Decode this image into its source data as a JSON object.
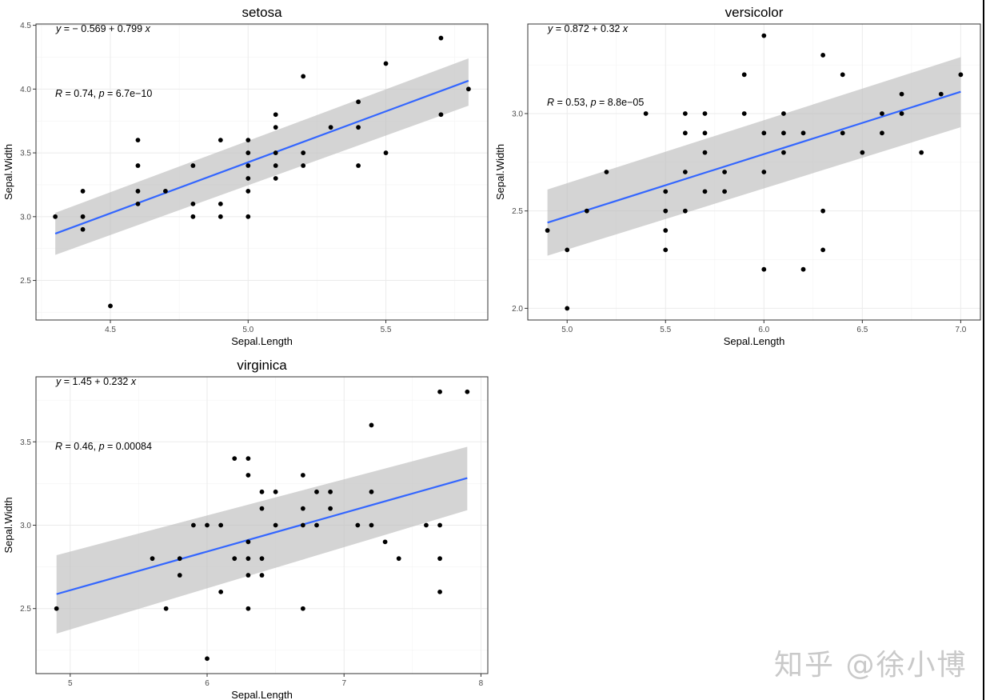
{
  "watermark": "知乎 @徐小博",
  "colors": {
    "fit_line": "#3366ff",
    "ribbon": "#bdbdbd",
    "point": "#000000",
    "grid": "#ebebeb",
    "border": "#333333"
  },
  "chart_data": [
    {
      "type": "scatter",
      "title": "setosa",
      "xlabel": "Sepal.Length",
      "ylabel": "Sepal.Width",
      "xlim": [
        4.23,
        5.87
      ],
      "ylim": [
        2.19,
        4.51
      ],
      "xticks": [
        4.5,
        5.0,
        5.5
      ],
      "xtick_labels": [
        "4.5",
        "5.0",
        "5.5"
      ],
      "yticks": [
        2.5,
        3.0,
        3.5,
        4.0,
        4.5
      ],
      "ytick_labels": [
        "2.5",
        "3.0",
        "3.5",
        "4.0",
        "4.5"
      ],
      "grid": true,
      "equation": "y = − 0.569 + 0.799 x",
      "stats": "R = 0.74, p = 6.7e−10",
      "fit": {
        "intercept": -0.569,
        "slope": 0.799,
        "x_range": [
          4.3,
          5.8
        ],
        "ci_lower": [
          2.7,
          3.87
        ],
        "ci_upper": [
          3.03,
          4.24
        ]
      },
      "points": [
        [
          4.3,
          3.0
        ],
        [
          4.4,
          3.2
        ],
        [
          4.4,
          3.0
        ],
        [
          4.4,
          2.9
        ],
        [
          4.5,
          2.3
        ],
        [
          4.6,
          3.6
        ],
        [
          4.6,
          3.4
        ],
        [
          4.6,
          3.2
        ],
        [
          4.6,
          3.1
        ],
        [
          4.7,
          3.2
        ],
        [
          4.8,
          3.4
        ],
        [
          4.8,
          3.1
        ],
        [
          4.8,
          3.0
        ],
        [
          4.9,
          3.6
        ],
        [
          4.9,
          3.1
        ],
        [
          4.9,
          3.0
        ],
        [
          5.0,
          3.6
        ],
        [
          5.0,
          3.5
        ],
        [
          5.0,
          3.4
        ],
        [
          5.0,
          3.3
        ],
        [
          5.0,
          3.2
        ],
        [
          5.0,
          3.0
        ],
        [
          5.1,
          3.8
        ],
        [
          5.1,
          3.7
        ],
        [
          5.1,
          3.5
        ],
        [
          5.1,
          3.4
        ],
        [
          5.1,
          3.3
        ],
        [
          5.2,
          4.1
        ],
        [
          5.2,
          3.5
        ],
        [
          5.2,
          3.4
        ],
        [
          5.3,
          3.7
        ],
        [
          5.4,
          3.9
        ],
        [
          5.4,
          3.7
        ],
        [
          5.4,
          3.4
        ],
        [
          5.5,
          4.2
        ],
        [
          5.5,
          3.5
        ],
        [
          5.7,
          4.4
        ],
        [
          5.7,
          3.8
        ],
        [
          5.8,
          4.0
        ]
      ]
    },
    {
      "type": "scatter",
      "title": "versicolor",
      "xlabel": "Sepal.Length",
      "ylabel": "Sepal.Width",
      "xlim": [
        4.8,
        7.1
      ],
      "ylim": [
        1.94,
        3.46
      ],
      "xticks": [
        5.0,
        5.5,
        6.0,
        6.5,
        7.0
      ],
      "xtick_labels": [
        "5.0",
        "5.5",
        "6.0",
        "6.5",
        "7.0"
      ],
      "yticks": [
        2.0,
        2.5,
        3.0
      ],
      "ytick_labels": [
        "2.0",
        "2.5",
        "3.0"
      ],
      "grid": true,
      "equation": "y = 0.872 + 0.32 x",
      "stats": "R = 0.53, p = 8.8e−05",
      "fit": {
        "intercept": 0.872,
        "slope": 0.32,
        "x_range": [
          4.9,
          7.0
        ],
        "ci_lower": [
          2.27,
          2.93
        ],
        "ci_upper": [
          2.61,
          3.29
        ]
      },
      "points": [
        [
          4.9,
          2.4
        ],
        [
          5.0,
          2.3
        ],
        [
          5.0,
          2.0
        ],
        [
          5.1,
          2.5
        ],
        [
          5.2,
          2.7
        ],
        [
          5.4,
          3.0
        ],
        [
          5.5,
          2.6
        ],
        [
          5.5,
          2.5
        ],
        [
          5.5,
          2.4
        ],
        [
          5.5,
          2.3
        ],
        [
          5.6,
          3.0
        ],
        [
          5.6,
          2.9
        ],
        [
          5.6,
          2.7
        ],
        [
          5.6,
          2.5
        ],
        [
          5.7,
          3.0
        ],
        [
          5.7,
          2.9
        ],
        [
          5.7,
          2.8
        ],
        [
          5.7,
          2.6
        ],
        [
          5.8,
          2.7
        ],
        [
          5.8,
          2.6
        ],
        [
          5.9,
          3.2
        ],
        [
          5.9,
          3.0
        ],
        [
          6.0,
          3.4
        ],
        [
          6.0,
          2.9
        ],
        [
          6.0,
          2.7
        ],
        [
          6.0,
          2.2
        ],
        [
          6.1,
          3.0
        ],
        [
          6.1,
          2.9
        ],
        [
          6.1,
          2.8
        ],
        [
          6.2,
          2.9
        ],
        [
          6.2,
          2.2
        ],
        [
          6.3,
          3.3
        ],
        [
          6.3,
          2.5
        ],
        [
          6.3,
          2.3
        ],
        [
          6.4,
          3.2
        ],
        [
          6.4,
          2.9
        ],
        [
          6.5,
          2.8
        ],
        [
          6.6,
          3.0
        ],
        [
          6.6,
          2.9
        ],
        [
          6.7,
          3.1
        ],
        [
          6.7,
          3.0
        ],
        [
          6.8,
          2.8
        ],
        [
          6.9,
          3.1
        ],
        [
          7.0,
          3.2
        ]
      ]
    },
    {
      "type": "scatter",
      "title": "virginica",
      "xlabel": "Sepal.Length",
      "ylabel": "Sepal.Width",
      "xlim": [
        4.75,
        8.05
      ],
      "ylim": [
        2.11,
        3.89
      ],
      "xticks": [
        5,
        6,
        7,
        8
      ],
      "xtick_labels": [
        "5",
        "6",
        "7",
        "8"
      ],
      "yticks": [
        2.5,
        3.0,
        3.5
      ],
      "ytick_labels": [
        "2.5",
        "3.0",
        "3.5"
      ],
      "grid": true,
      "equation": "y = 1.45 + 0.232 x",
      "stats": "R = 0.46, p = 0.00084",
      "fit": {
        "intercept": 1.45,
        "slope": 0.232,
        "x_range": [
          4.9,
          7.9
        ],
        "ci_lower": [
          2.35,
          3.09
        ],
        "ci_upper": [
          2.82,
          3.47
        ]
      },
      "points": [
        [
          4.9,
          2.5
        ],
        [
          5.6,
          2.8
        ],
        [
          5.7,
          2.5
        ],
        [
          5.8,
          2.8
        ],
        [
          5.8,
          2.7
        ],
        [
          5.9,
          3.0
        ],
        [
          6.0,
          3.0
        ],
        [
          6.0,
          2.2
        ],
        [
          6.1,
          3.0
        ],
        [
          6.1,
          2.6
        ],
        [
          6.2,
          3.4
        ],
        [
          6.2,
          2.8
        ],
        [
          6.3,
          3.4
        ],
        [
          6.3,
          3.3
        ],
        [
          6.3,
          2.9
        ],
        [
          6.3,
          2.8
        ],
        [
          6.3,
          2.7
        ],
        [
          6.3,
          2.5
        ],
        [
          6.4,
          3.2
        ],
        [
          6.4,
          3.1
        ],
        [
          6.4,
          2.8
        ],
        [
          6.4,
          2.7
        ],
        [
          6.5,
          3.2
        ],
        [
          6.5,
          3.0
        ],
        [
          6.7,
          3.3
        ],
        [
          6.7,
          3.1
        ],
        [
          6.7,
          3.0
        ],
        [
          6.7,
          2.5
        ],
        [
          6.8,
          3.2
        ],
        [
          6.8,
          3.0
        ],
        [
          6.9,
          3.2
        ],
        [
          6.9,
          3.1
        ],
        [
          7.1,
          3.0
        ],
        [
          7.2,
          3.6
        ],
        [
          7.2,
          3.2
        ],
        [
          7.2,
          3.0
        ],
        [
          7.3,
          2.9
        ],
        [
          7.4,
          2.8
        ],
        [
          7.6,
          3.0
        ],
        [
          7.7,
          3.8
        ],
        [
          7.7,
          3.0
        ],
        [
          7.7,
          2.8
        ],
        [
          7.7,
          2.6
        ],
        [
          7.9,
          3.8
        ]
      ]
    }
  ]
}
